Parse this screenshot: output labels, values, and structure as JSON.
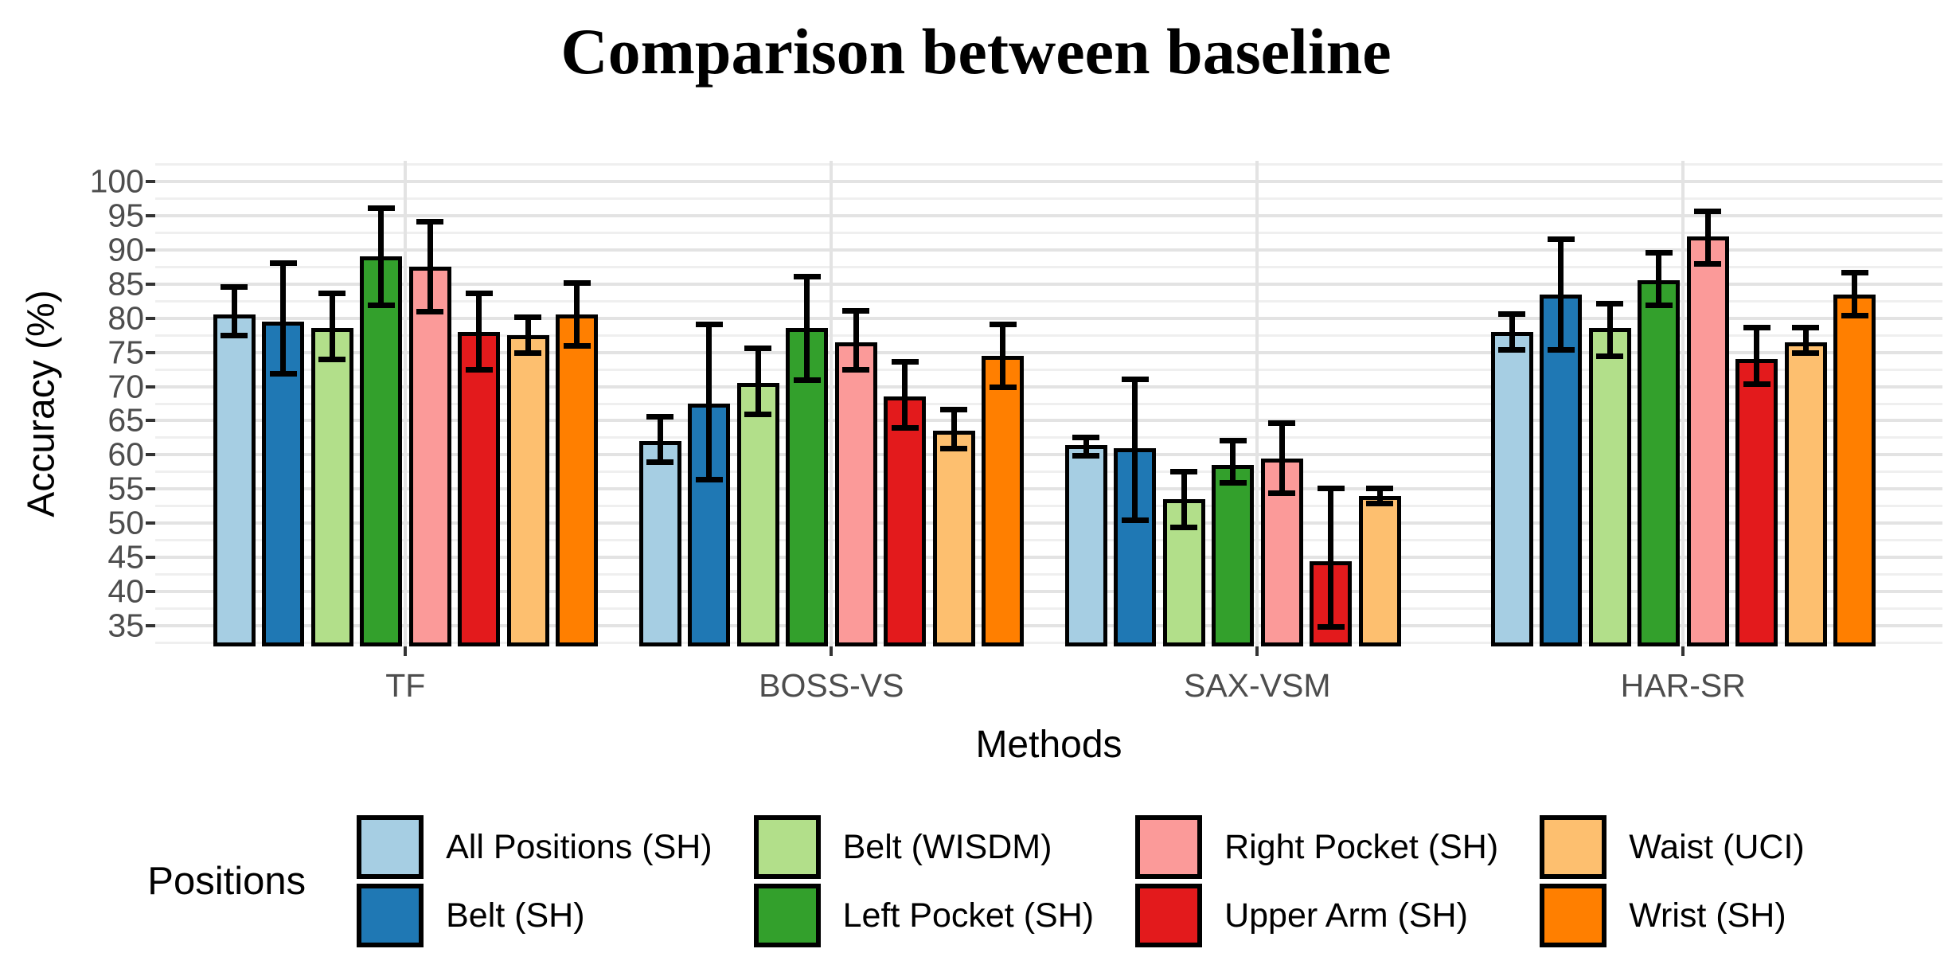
{
  "title": "Comparison between baseline",
  "chart_data": {
    "type": "bar",
    "title": "Comparison between baseline",
    "xlabel": "Methods",
    "ylabel": "Accuracy (%)",
    "ylim": [
      32,
      103
    ],
    "yticks": [
      35,
      40,
      45,
      50,
      55,
      60,
      65,
      70,
      75,
      80,
      85,
      90,
      95,
      100
    ],
    "minor_tick_step": 2.5,
    "grid": true,
    "legend_title": "Positions",
    "legend_position": "bottom",
    "categories": [
      "TF",
      "BOSS-VS",
      "SAX-VSM",
      "HAR-SR"
    ],
    "series": [
      {
        "name": "All Positions (SH)",
        "color": "#A6CEE3",
        "values": [
          80.5,
          62,
          61.5,
          78
        ],
        "err_lo": [
          77,
          58.5,
          59.5,
          75
        ],
        "err_hi": [
          85,
          66,
          63,
          81
        ]
      },
      {
        "name": "Belt (SH)",
        "color": "#1F78B4",
        "values": [
          79.5,
          67.5,
          61,
          83.5
        ],
        "err_lo": [
          71.5,
          56,
          50,
          75
        ],
        "err_hi": [
          88.5,
          79.5,
          71.5,
          92
        ]
      },
      {
        "name": "Belt (WISDM)",
        "color": "#B2DF8A",
        "values": [
          78.5,
          70.5,
          53.5,
          78.5
        ],
        "err_lo": [
          73.5,
          65.5,
          49,
          74
        ],
        "err_hi": [
          84,
          76,
          58,
          82.5
        ]
      },
      {
        "name": "Left Pocket (SH)",
        "color": "#33A02C",
        "values": [
          89,
          78.5,
          58.5,
          85.5
        ],
        "err_lo": [
          81.5,
          70.5,
          55.5,
          81.5
        ],
        "err_hi": [
          96.5,
          86.5,
          62.5,
          90
        ]
      },
      {
        "name": "Right Pocket (SH)",
        "color": "#FB9A99",
        "values": [
          87.5,
          76.5,
          59.5,
          92
        ],
        "err_lo": [
          80.5,
          72,
          54,
          87.5
        ],
        "err_hi": [
          94.5,
          81.5,
          65,
          96
        ]
      },
      {
        "name": "Upper Arm (SH)",
        "color": "#E31A1C",
        "values": [
          78,
          68.5,
          44.5,
          74
        ],
        "err_lo": [
          72,
          63.5,
          34.5,
          70
        ],
        "err_hi": [
          84,
          74,
          55.5,
          79
        ]
      },
      {
        "name": "Waist (UCI)",
        "color": "#FDBF6F",
        "values": [
          77.5,
          63.5,
          54,
          76.5
        ],
        "err_lo": [
          74.5,
          60.5,
          52.5,
          74.5
        ],
        "err_hi": [
          80.5,
          67,
          55.5,
          79
        ]
      },
      {
        "name": "Wrist (SH)",
        "color": "#FF7F00",
        "values": [
          80.5,
          74.5,
          null,
          83.5
        ],
        "err_lo": [
          75.5,
          69.5,
          null,
          80
        ],
        "err_hi": [
          85.5,
          79.5,
          null,
          87
        ]
      }
    ]
  },
  "colors": {
    "background": "#FFFFFF",
    "bar_border": "#000000",
    "error_bar": "#000000",
    "grid_major": "#E3E3E3",
    "grid_minor": "#EFEFEF",
    "tick_label": "#4D4D4D",
    "axis_title": "#000000"
  }
}
